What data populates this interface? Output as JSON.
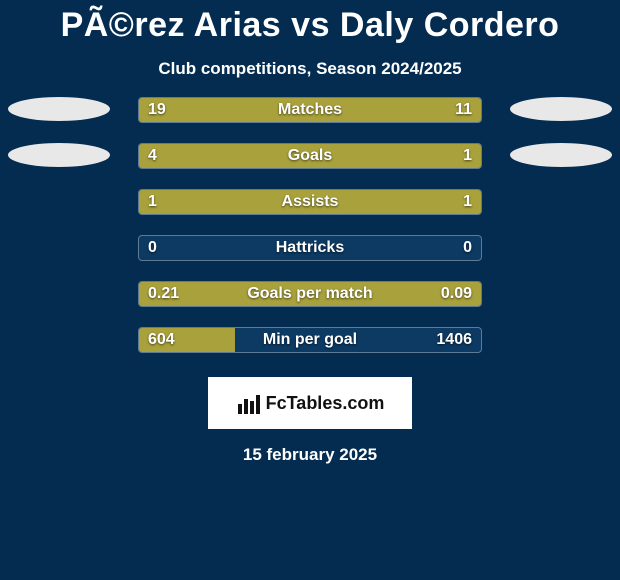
{
  "header": {
    "title": "PÃ©rez Arias vs Daly Cordero",
    "subtitle": "Club competitions, Season 2024/2025"
  },
  "colors": {
    "background": "#032c50",
    "bar_fill": "#a9a13c",
    "bar_track": "#0c3a63",
    "bar_border": "#5f7a95",
    "avatar": "#e8e8e8",
    "text": "#ffffff",
    "logo_bg": "#ffffff",
    "logo_text": "#111111"
  },
  "stats": [
    {
      "label": "Matches",
      "left_val": "19",
      "right_val": "11",
      "left_pct": 60,
      "right_pct": 40,
      "avatar_left": true,
      "avatar_right": true
    },
    {
      "label": "Goals",
      "left_val": "4",
      "right_val": "1",
      "left_pct": 76,
      "right_pct": 24,
      "avatar_left": true,
      "avatar_right": true
    },
    {
      "label": "Assists",
      "left_val": "1",
      "right_val": "1",
      "left_pct": 50,
      "right_pct": 50,
      "avatar_left": false,
      "avatar_right": false
    },
    {
      "label": "Hattricks",
      "left_val": "0",
      "right_val": "0",
      "left_pct": 0,
      "right_pct": 0,
      "avatar_left": false,
      "avatar_right": false
    },
    {
      "label": "Goals per match",
      "left_val": "0.21",
      "right_val": "0.09",
      "left_pct": 100,
      "right_pct": 0,
      "avatar_left": false,
      "avatar_right": false
    },
    {
      "label": "Min per goal",
      "left_val": "604",
      "right_val": "1406",
      "left_pct": 28,
      "right_pct": 0,
      "avatar_left": false,
      "avatar_right": false
    }
  ],
  "logo": {
    "text": "FcTables.com"
  },
  "date": "15 february 2025"
}
